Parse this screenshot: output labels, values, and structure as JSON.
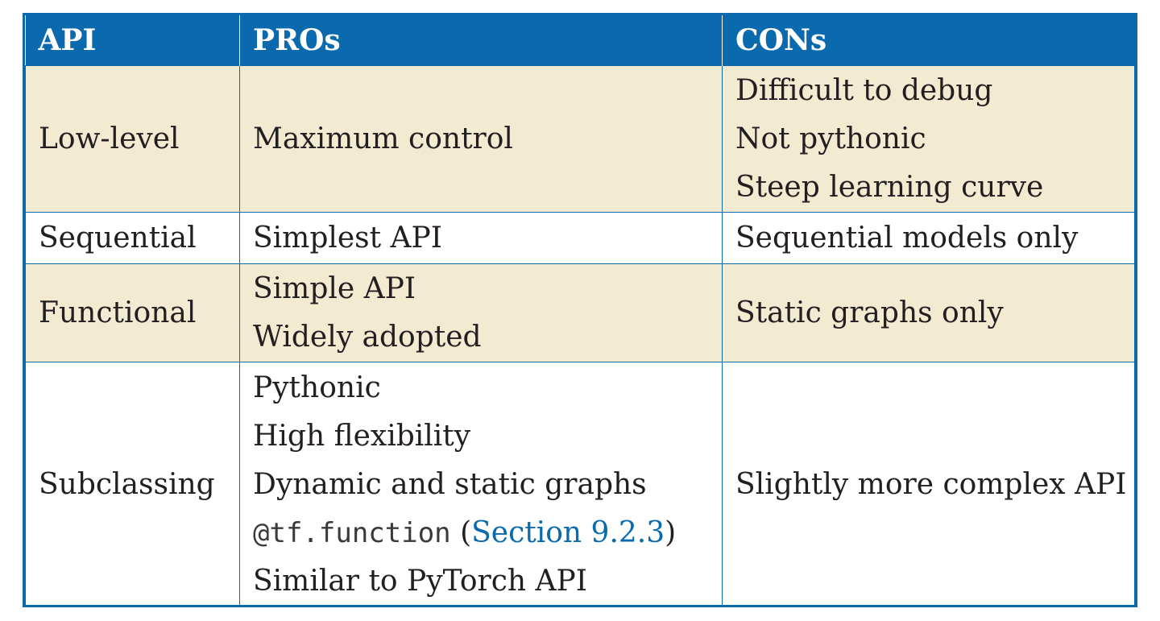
{
  "table": {
    "headers": [
      "API",
      "PROs",
      "CONs"
    ],
    "rows": [
      {
        "api": "Low-level",
        "pros": [
          "Maximum control"
        ],
        "cons": [
          "Difficult to debug",
          "Not pythonic",
          "Steep learning curve"
        ]
      },
      {
        "api": "Sequential",
        "pros": [
          "Simplest API"
        ],
        "cons": [
          "Sequential models only"
        ]
      },
      {
        "api": "Functional",
        "pros": [
          "Simple API",
          "Widely adopted"
        ],
        "cons": [
          "Static graphs only"
        ]
      },
      {
        "api": "Subclassing",
        "pros": [
          "Pythonic",
          "High flexibility",
          "Dynamic and static graphs"
        ],
        "pros_code": "@tf.function",
        "pros_code_open": " (",
        "pros_code_link": "Section 9.2.3",
        "pros_code_close": ")",
        "pros_last": "Similar to PyTorch API",
        "cons": [
          "Slightly more complex API"
        ]
      }
    ]
  },
  "colors": {
    "header_bg": "#0a6aad",
    "shaded_row_bg": "#f3ead2",
    "link": "#0a6aad"
  }
}
